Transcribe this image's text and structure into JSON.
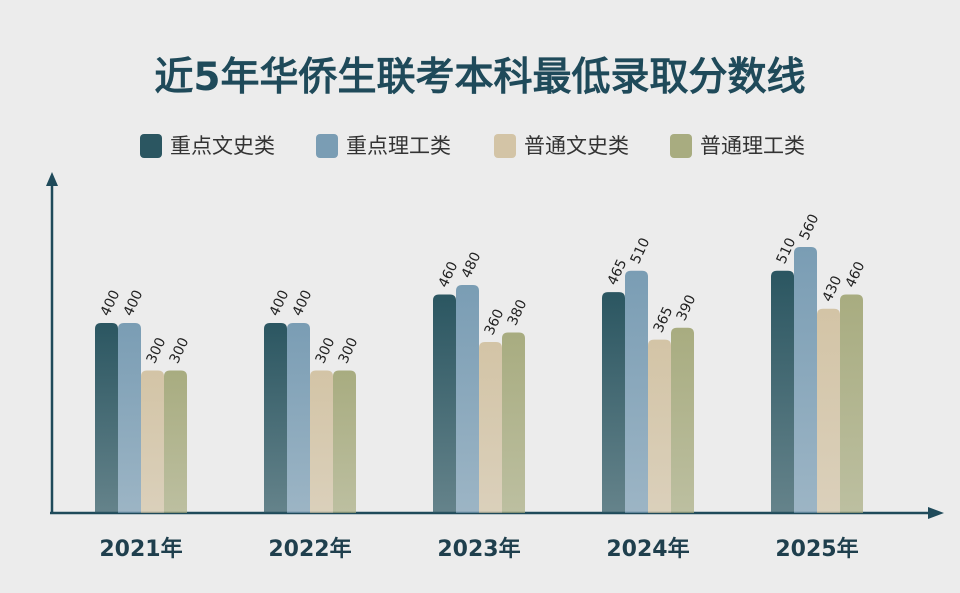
{
  "chart_data": {
    "type": "bar",
    "title": "近5年华侨生联考本科最低录取分数线",
    "categories": [
      "2021年",
      "2022年",
      "2023年",
      "2024年",
      "2025年"
    ],
    "series": [
      {
        "name": "重点文史类",
        "color": "#2b5661",
        "values": [
          400,
          400,
          460,
          465,
          510
        ]
      },
      {
        "name": "重点理工类",
        "color": "#7a9db4",
        "values": [
          400,
          400,
          480,
          510,
          560
        ]
      },
      {
        "name": "普通文史类",
        "color": "#d3c4a6",
        "values": [
          300,
          300,
          360,
          365,
          430
        ]
      },
      {
        "name": "普通理工类",
        "color": "#a8ac80",
        "values": [
          300,
          300,
          380,
          390,
          460
        ]
      }
    ]
  }
}
